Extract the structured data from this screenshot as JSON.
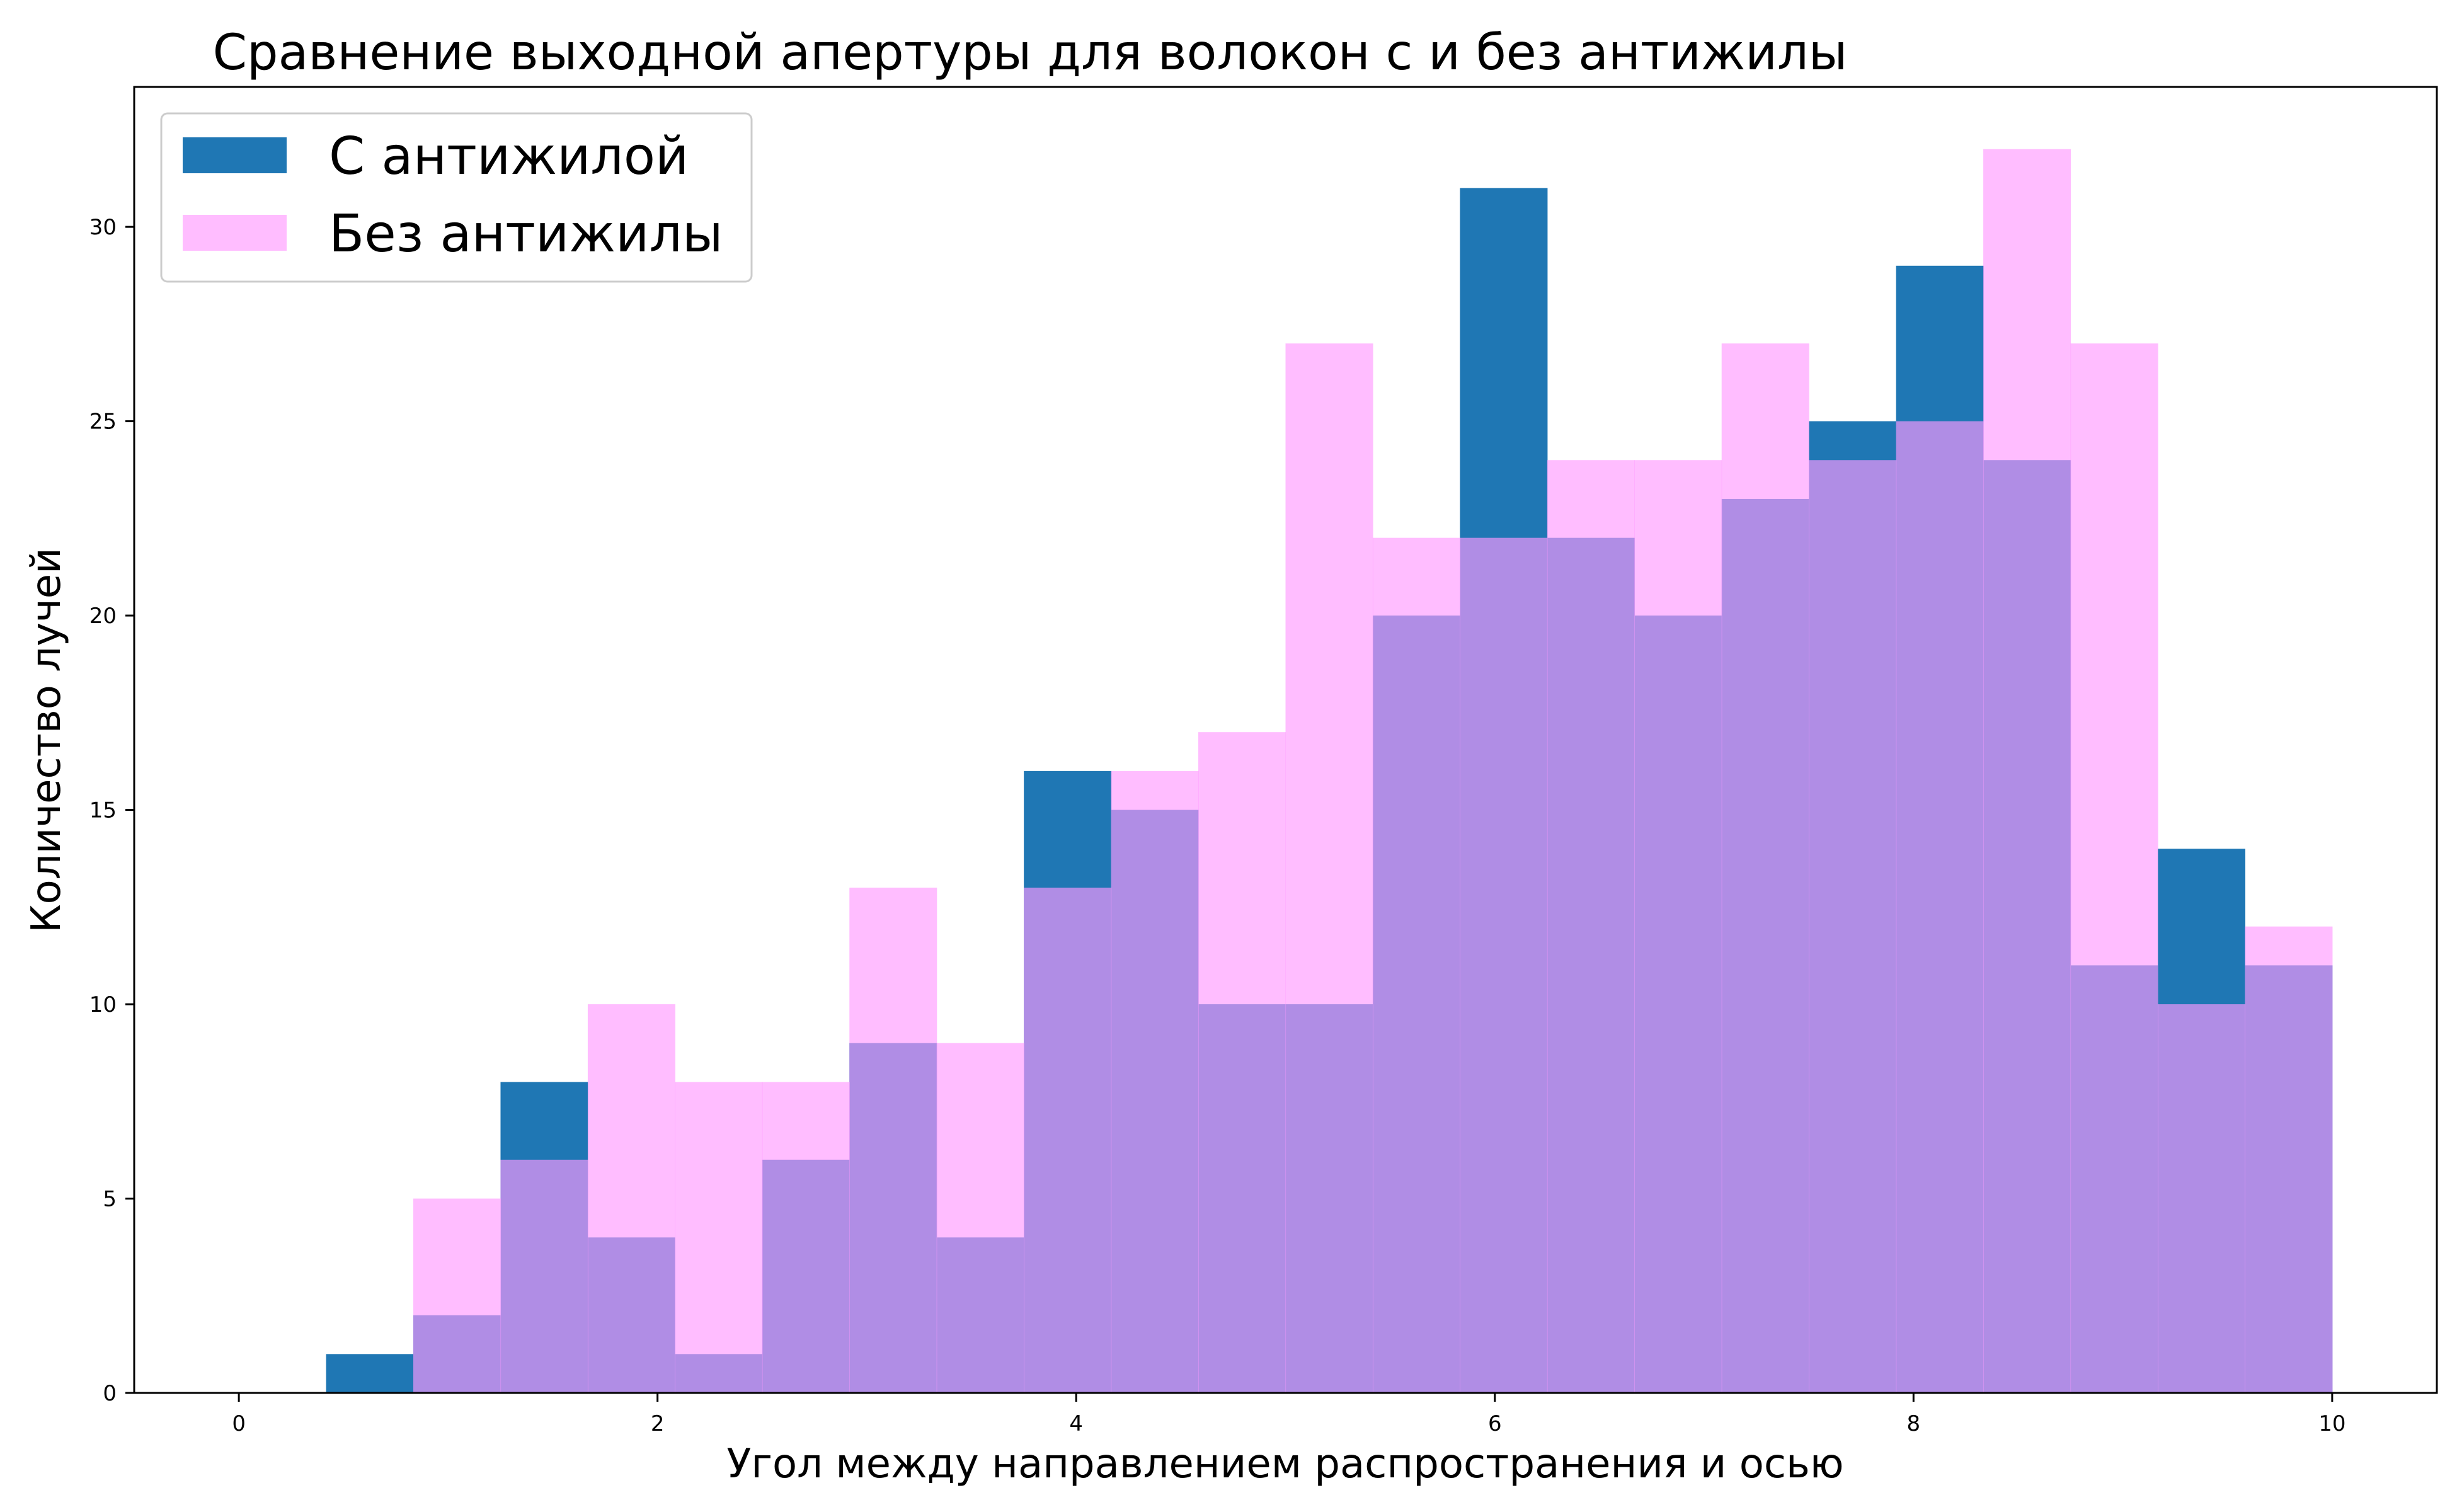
{
  "chart_data": {
    "type": "bar",
    "title": "Сравнение выходной апертуры для волокон с и без антижилы",
    "xlabel": "Угол между направлением распространения и осью",
    "ylabel": "Количество лучей",
    "xlim": [
      -0.5,
      10.5
    ],
    "ylim": [
      0,
      33.6
    ],
    "x_ticks": [
      0,
      2,
      4,
      6,
      8,
      10
    ],
    "y_ticks": [
      0,
      5,
      10,
      15,
      20,
      25,
      30
    ],
    "bin_edges": [
      0.0,
      0.4167,
      0.8333,
      1.25,
      1.6667,
      2.0833,
      2.5,
      2.9167,
      3.3333,
      3.75,
      4.1667,
      4.5833,
      5.0,
      5.4167,
      5.8333,
      6.25,
      6.6667,
      7.0833,
      7.5,
      7.9167,
      8.3333,
      8.75,
      9.1667,
      9.5833,
      10.0
    ],
    "series": [
      {
        "name": "С антижилой",
        "color": "#1f77b4",
        "values": [
          0,
          1,
          2,
          8,
          4,
          1,
          6,
          9,
          4,
          16,
          15,
          10,
          10,
          20,
          31,
          22,
          20,
          23,
          25,
          29,
          24,
          11,
          14,
          11
        ]
      },
      {
        "name": "Без антижилы",
        "color": "#ff99ff",
        "opacity": 0.65,
        "values": [
          0,
          0,
          5,
          6,
          10,
          8,
          8,
          13,
          9,
          13,
          16,
          17,
          27,
          22,
          22,
          24,
          24,
          27,
          24,
          25,
          32,
          27,
          10,
          12
        ]
      }
    ],
    "grid": false,
    "legend_position": "top-left"
  }
}
